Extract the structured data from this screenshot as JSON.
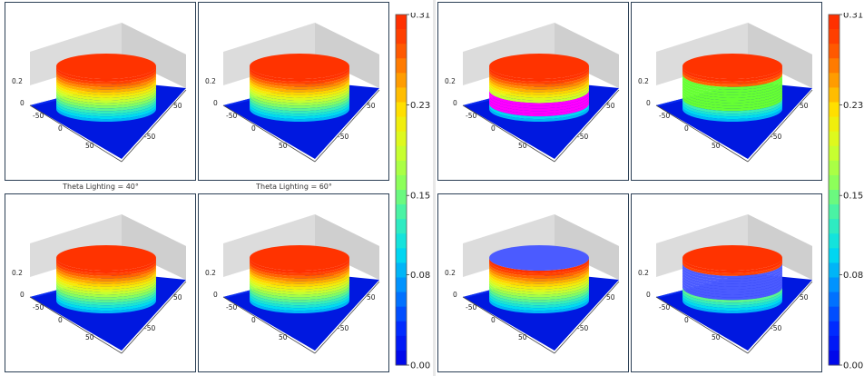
{
  "chart_data": [
    {
      "type": "surface3d",
      "group": "left",
      "panels": [
        {
          "id": "L1",
          "caption": "",
          "band_mode": "gradient"
        },
        {
          "id": "L2",
          "caption": "",
          "band_mode": "gradient"
        },
        {
          "id": "L3",
          "caption": "Theta Lighting = 40°",
          "band_mode": "gradient"
        },
        {
          "id": "L4",
          "caption": "Theta Lighting = 60°",
          "band_mode": "gradient"
        }
      ],
      "x_ticks": [
        "-50",
        "0",
        "50"
      ],
      "y_ticks": [
        "50",
        "-50"
      ],
      "z_ticks": [
        "0.2",
        "0"
      ],
      "colorbar": {
        "min": 0.0,
        "max": 0.31,
        "ticks": [
          "0.31",
          "0.23",
          "0.15",
          "0.08",
          "0.00"
        ]
      }
    },
    {
      "type": "surface3d",
      "group": "right",
      "panels": [
        {
          "id": "R1",
          "caption": "",
          "band_mode": "magenta-band",
          "top_color": "#ff3300",
          "band_color": "#ff00ff"
        },
        {
          "id": "R2",
          "caption": "",
          "band_mode": "green-band",
          "top_color": "#ff3300",
          "band_color": "#66ff33"
        },
        {
          "id": "R3",
          "caption": "",
          "band_mode": "blue-top",
          "top_color": "#4b5bff"
        },
        {
          "id": "R4",
          "caption": "",
          "band_mode": "blue-band",
          "top_color": "#ff3300",
          "band_color": "#4b5bff"
        }
      ],
      "x_ticks": [
        "-50",
        "0",
        "50"
      ],
      "y_ticks": [
        "50",
        "-50"
      ],
      "z_ticks": [
        "0.2",
        "0"
      ],
      "colorbar": {
        "min": 0.0,
        "max": 0.31,
        "ticks": [
          "0.31",
          "0.23",
          "0.15",
          "0.08",
          "0.00"
        ]
      }
    }
  ]
}
